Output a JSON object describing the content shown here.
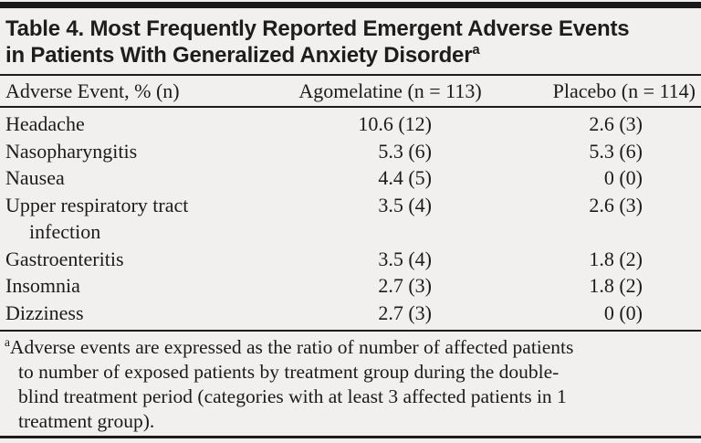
{
  "page": {
    "background": "#f1f0ee",
    "ink": "#1b1b1b"
  },
  "table": {
    "title": {
      "line1": "Table 4. Most Frequently Reported Emergent Adverse Events",
      "line2": "in Patients With Generalized Anxiety Disorder",
      "superscript": "a"
    },
    "header": {
      "col1": "Adverse Event, % (n)",
      "col2": "Agomelatine (n = 113)",
      "col3": "Placebo (n = 114)"
    },
    "rows": [
      {
        "event": "Headache",
        "agomelatine": "10.6 (12)",
        "placebo": "2.6 (3)"
      },
      {
        "event": "Nasopharyngitis",
        "agomelatine": "5.3 (6)",
        "placebo": "5.3 (6)"
      },
      {
        "event": "Nausea",
        "agomelatine": "4.4 (5)",
        "placebo": "0 (0)"
      },
      {
        "event": "Upper respiratory tract",
        "event_line2": "infection",
        "agomelatine": "3.5 (4)",
        "placebo": "2.6 (3)"
      },
      {
        "event": "Gastroenteritis",
        "agomelatine": "3.5 (4)",
        "placebo": "1.8 (2)"
      },
      {
        "event": "Insomnia",
        "agomelatine": "2.7 (3)",
        "placebo": "1.8 (2)"
      },
      {
        "event": "Dizziness",
        "agomelatine": "2.7 (3)",
        "placebo": "0 (0)"
      }
    ],
    "footnote": {
      "marker": "a",
      "lines": [
        "Adverse events are expressed as the ratio of number of affected patients",
        "to number of exposed patients by treatment group during the double-",
        "blind treatment period (categories with at least 3 affected patients in 1",
        "treatment group)."
      ]
    }
  }
}
